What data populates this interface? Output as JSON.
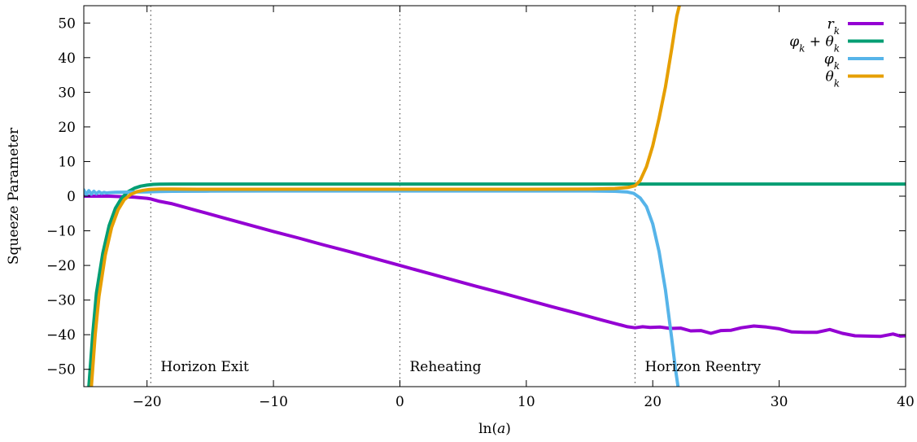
{
  "chart_data": {
    "type": "line",
    "xlabel": "ln(a)",
    "ylabel": "Squeeze Parameter",
    "xlim": [
      -25,
      40
    ],
    "ylim": [
      -55,
      55
    ],
    "xticks": [
      -20,
      -10,
      0,
      10,
      20,
      30,
      40
    ],
    "yticks": [
      -50,
      -40,
      -30,
      -20,
      -10,
      0,
      10,
      20,
      30,
      40,
      50
    ],
    "xtick_labels": [
      "−20",
      "−10",
      "0",
      "10",
      "20",
      "30",
      "40"
    ],
    "ytick_labels": [
      "−50",
      "−40",
      "−30",
      "−20",
      "−10",
      "0",
      "10",
      "20",
      "30",
      "40",
      "50"
    ],
    "grid": false,
    "legend_position": "top-right",
    "annotations": [
      {
        "label": "Horizon Exit",
        "x": -19.7
      },
      {
        "label": "Reheating",
        "x": 0
      },
      {
        "label": "Horizon Reentry",
        "x": 18.6
      }
    ],
    "series": [
      {
        "name": "r_k",
        "legend": "rk",
        "color": "#9400d3",
        "x": [
          -25,
          -23,
          -21,
          -20,
          -19.7,
          -19,
          -18,
          -16,
          -14,
          -12,
          -10,
          -8,
          -6,
          -4,
          -2,
          0,
          2,
          4,
          6,
          8,
          10,
          12,
          14,
          16,
          18,
          18.6,
          19.2,
          19.8,
          20.6,
          21.4,
          22.2,
          23.0,
          23.8,
          24.6,
          25.4,
          26.2,
          27.0,
          28.0,
          29.0,
          30.0,
          31.0,
          32.0,
          33.0,
          34.0,
          35.0,
          36.0,
          37.0,
          38.0,
          39.0,
          39.6,
          40.0
        ],
        "y": [
          0,
          0,
          -0.3,
          -0.6,
          -0.8,
          -1.5,
          -2.2,
          -4.2,
          -6.2,
          -8.2,
          -10.2,
          -12.1,
          -14.1,
          -16.0,
          -18.0,
          -20.0,
          -22.0,
          -24.0,
          -26.0,
          -27.9,
          -29.9,
          -31.9,
          -33.8,
          -35.8,
          -37.7,
          -38.0,
          -37.7,
          -37.9,
          -37.8,
          -38.2,
          -38.1,
          -38.9,
          -38.8,
          -39.6,
          -38.8,
          -38.7,
          -38.0,
          -37.5,
          -37.8,
          -38.3,
          -39.2,
          -39.3,
          -39.3,
          -38.5,
          -39.6,
          -40.3,
          -40.4,
          -40.5,
          -39.8,
          -40.4,
          -40.3
        ]
      },
      {
        "name": "φ_k + θ_k",
        "legend": "φk + θk",
        "color": "#009e73",
        "x": [
          -24.6,
          -24.3,
          -24.0,
          -23.5,
          -23.0,
          -22.5,
          -22.0,
          -21.5,
          -21.0,
          -20.5,
          -20.0,
          -19.5,
          -19.0,
          -18.0,
          -16.0,
          -10,
          0,
          10,
          20,
          30,
          40
        ],
        "y": [
          -55,
          -40,
          -28,
          -16.5,
          -8.5,
          -3.5,
          -0.5,
          1.3,
          2.3,
          2.9,
          3.2,
          3.4,
          3.45,
          3.5,
          3.5,
          3.5,
          3.5,
          3.5,
          3.5,
          3.5,
          3.5
        ]
      },
      {
        "name": "φ_k",
        "legend": "φk",
        "color": "#56b4e9",
        "x": [
          -25,
          -24.8,
          -24.6,
          -24.4,
          -24.2,
          -24.0,
          -23.8,
          -23.6,
          -23.4,
          -23.2,
          -23.0,
          -22.5,
          -22.0,
          -21.0,
          -20.0,
          -19.0,
          -18.0,
          -15,
          -10,
          0,
          10,
          15,
          17,
          18,
          18.5,
          19.0,
          19.5,
          20.0,
          20.5,
          21.0,
          21.5,
          21.8,
          22.0
        ],
        "y": [
          1.8,
          0.4,
          1.6,
          0.6,
          1.4,
          0.7,
          1.3,
          0.8,
          1.1,
          0.9,
          1.0,
          1.1,
          1.15,
          1.2,
          1.25,
          1.35,
          1.4,
          1.45,
          1.5,
          1.5,
          1.5,
          1.5,
          1.4,
          1.2,
          0.8,
          -0.5,
          -3.0,
          -8.0,
          -16.0,
          -27.0,
          -41.0,
          -50.0,
          -55
        ]
      },
      {
        "name": "θ_k",
        "legend": "θk",
        "color": "#e69f00",
        "x": [
          -24.4,
          -24.1,
          -23.8,
          -23.3,
          -22.8,
          -22.3,
          -21.8,
          -21.3,
          -20.8,
          -20.3,
          -19.8,
          -19.0,
          -18.0,
          -16.0,
          -10,
          0,
          10,
          15,
          17,
          18,
          18.6,
          19.0,
          19.5,
          20.0,
          20.5,
          21.0,
          21.5,
          21.9,
          22.1
        ],
        "y": [
          -55,
          -40,
          -29,
          -17,
          -9,
          -4,
          -1,
          0.5,
          1.3,
          1.7,
          1.95,
          2.05,
          2.05,
          2.0,
          2.0,
          2.0,
          2.0,
          2.05,
          2.2,
          2.5,
          3.0,
          4.5,
          8.5,
          14.5,
          22.5,
          31.5,
          42.5,
          52.0,
          55
        ]
      }
    ]
  }
}
